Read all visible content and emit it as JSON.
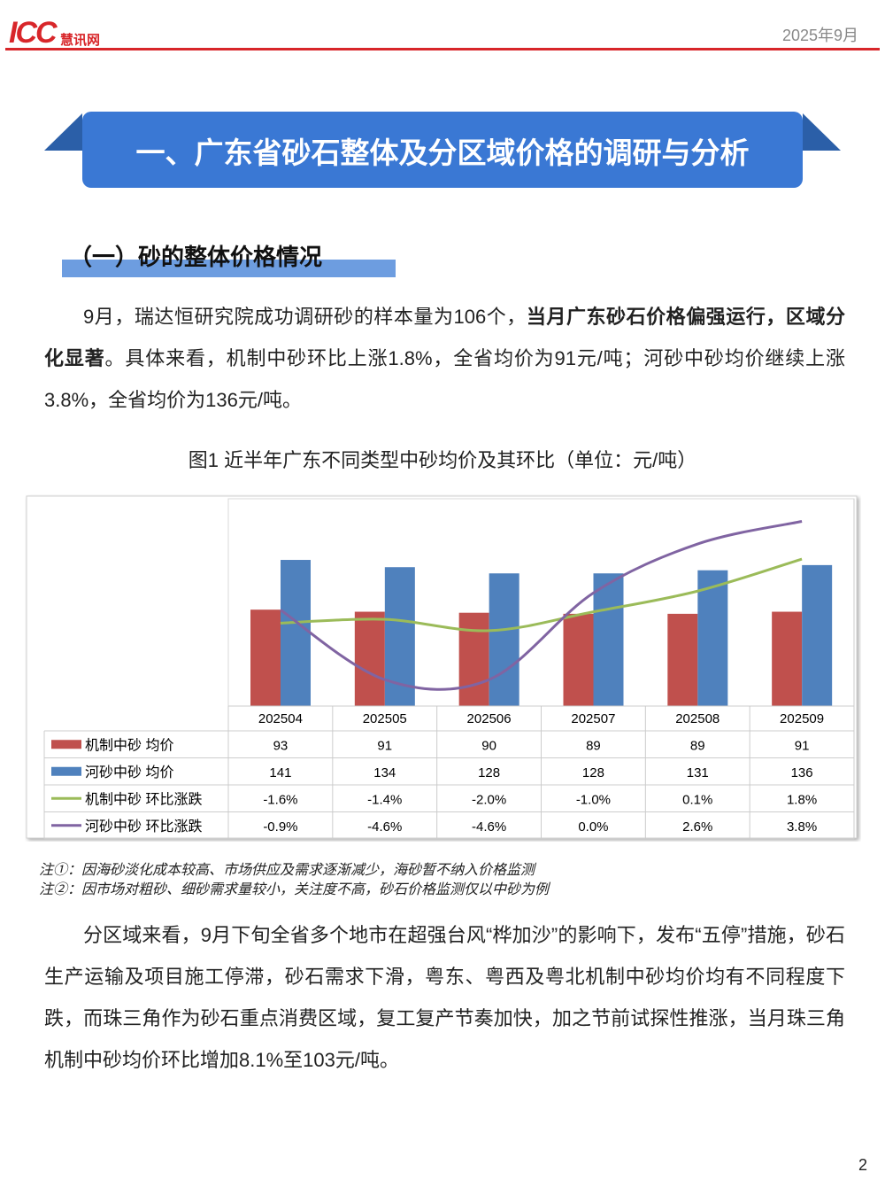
{
  "header": {
    "logo": "ICC",
    "logo_sub": "慧讯网",
    "date": "2025年9月"
  },
  "section_title": "一、广东省砂石整体及分区域价格的调研与分析",
  "subsection_title": "（一）砂的整体价格情况",
  "paragraph1": [
    {
      "text": "9月，瑞达恒研究院成功调研砂的样本量为106个，",
      "bold": false
    },
    {
      "text": "当月广东砂石价格偏强运行，区域分化显著",
      "bold": true
    },
    {
      "text": "。具体来看，机制中砂环比上涨1.8%，全省均价为91元/吨；河砂中砂均价继续上涨3.8%，全省均价为136元/吨。",
      "bold": false
    }
  ],
  "chart_data": {
    "type": "bar-line",
    "title": "图1 近半年广东不同类型中砂均价及其环比（单位：元/吨）",
    "categories": [
      "202504",
      "202505",
      "202506",
      "202507",
      "202508",
      "202509"
    ],
    "ylim": [
      0,
      200
    ],
    "y2lim": [
      -6,
      5
    ],
    "series": [
      {
        "name": "机制中砂 均价",
        "color": "#c0504d",
        "type": "bar",
        "values": [
          93,
          91,
          90,
          89,
          89,
          91
        ]
      },
      {
        "name": "河砂中砂 均价",
        "color": "#4f81bd",
        "type": "bar",
        "values": [
          141,
          134,
          128,
          128,
          131,
          136
        ]
      },
      {
        "name": "机制中砂 环比涨跌",
        "color": "#9bbb59",
        "type": "line",
        "axis": "y2",
        "values": [
          -1.6,
          -1.4,
          -2.0,
          -1.0,
          0.1,
          1.8
        ],
        "value_labels": [
          "-1.6%",
          "-1.4%",
          "-2.0%",
          "-1.0%",
          "0.1%",
          "1.8%"
        ]
      },
      {
        "name": "河砂中砂 环比涨跌",
        "color": "#8064a2",
        "type": "line",
        "axis": "y2",
        "values": [
          -0.9,
          -4.6,
          -4.6,
          0.0,
          2.6,
          3.8
        ],
        "value_labels": [
          "-0.9%",
          "-4.6%",
          "-4.6%",
          "0.0%",
          "2.6%",
          "3.8%"
        ]
      }
    ]
  },
  "notes": [
    "注①：因海砂淡化成本较高、市场供应及需求逐渐减少，海砂暂不纳入价格监测",
    "注②：因市场对粗砂、细砂需求量较小，关注度不高，砂石价格监测仅以中砂为例"
  ],
  "paragraph2": "分区域来看，9月下旬全省多个地市在超强台风“桦加沙”的影响下，发布“五停”措施，砂石生产运输及项目施工停滞，砂石需求下滑，粤东、粤西及粤北机制中砂均价均有不同程度下跌，而珠三角作为砂石重点消费区域，复工复产节奏加快，加之节前试探性推涨，当月珠三角机制中砂均价环比增加8.1%至103元/吨。",
  "page_number": "2"
}
